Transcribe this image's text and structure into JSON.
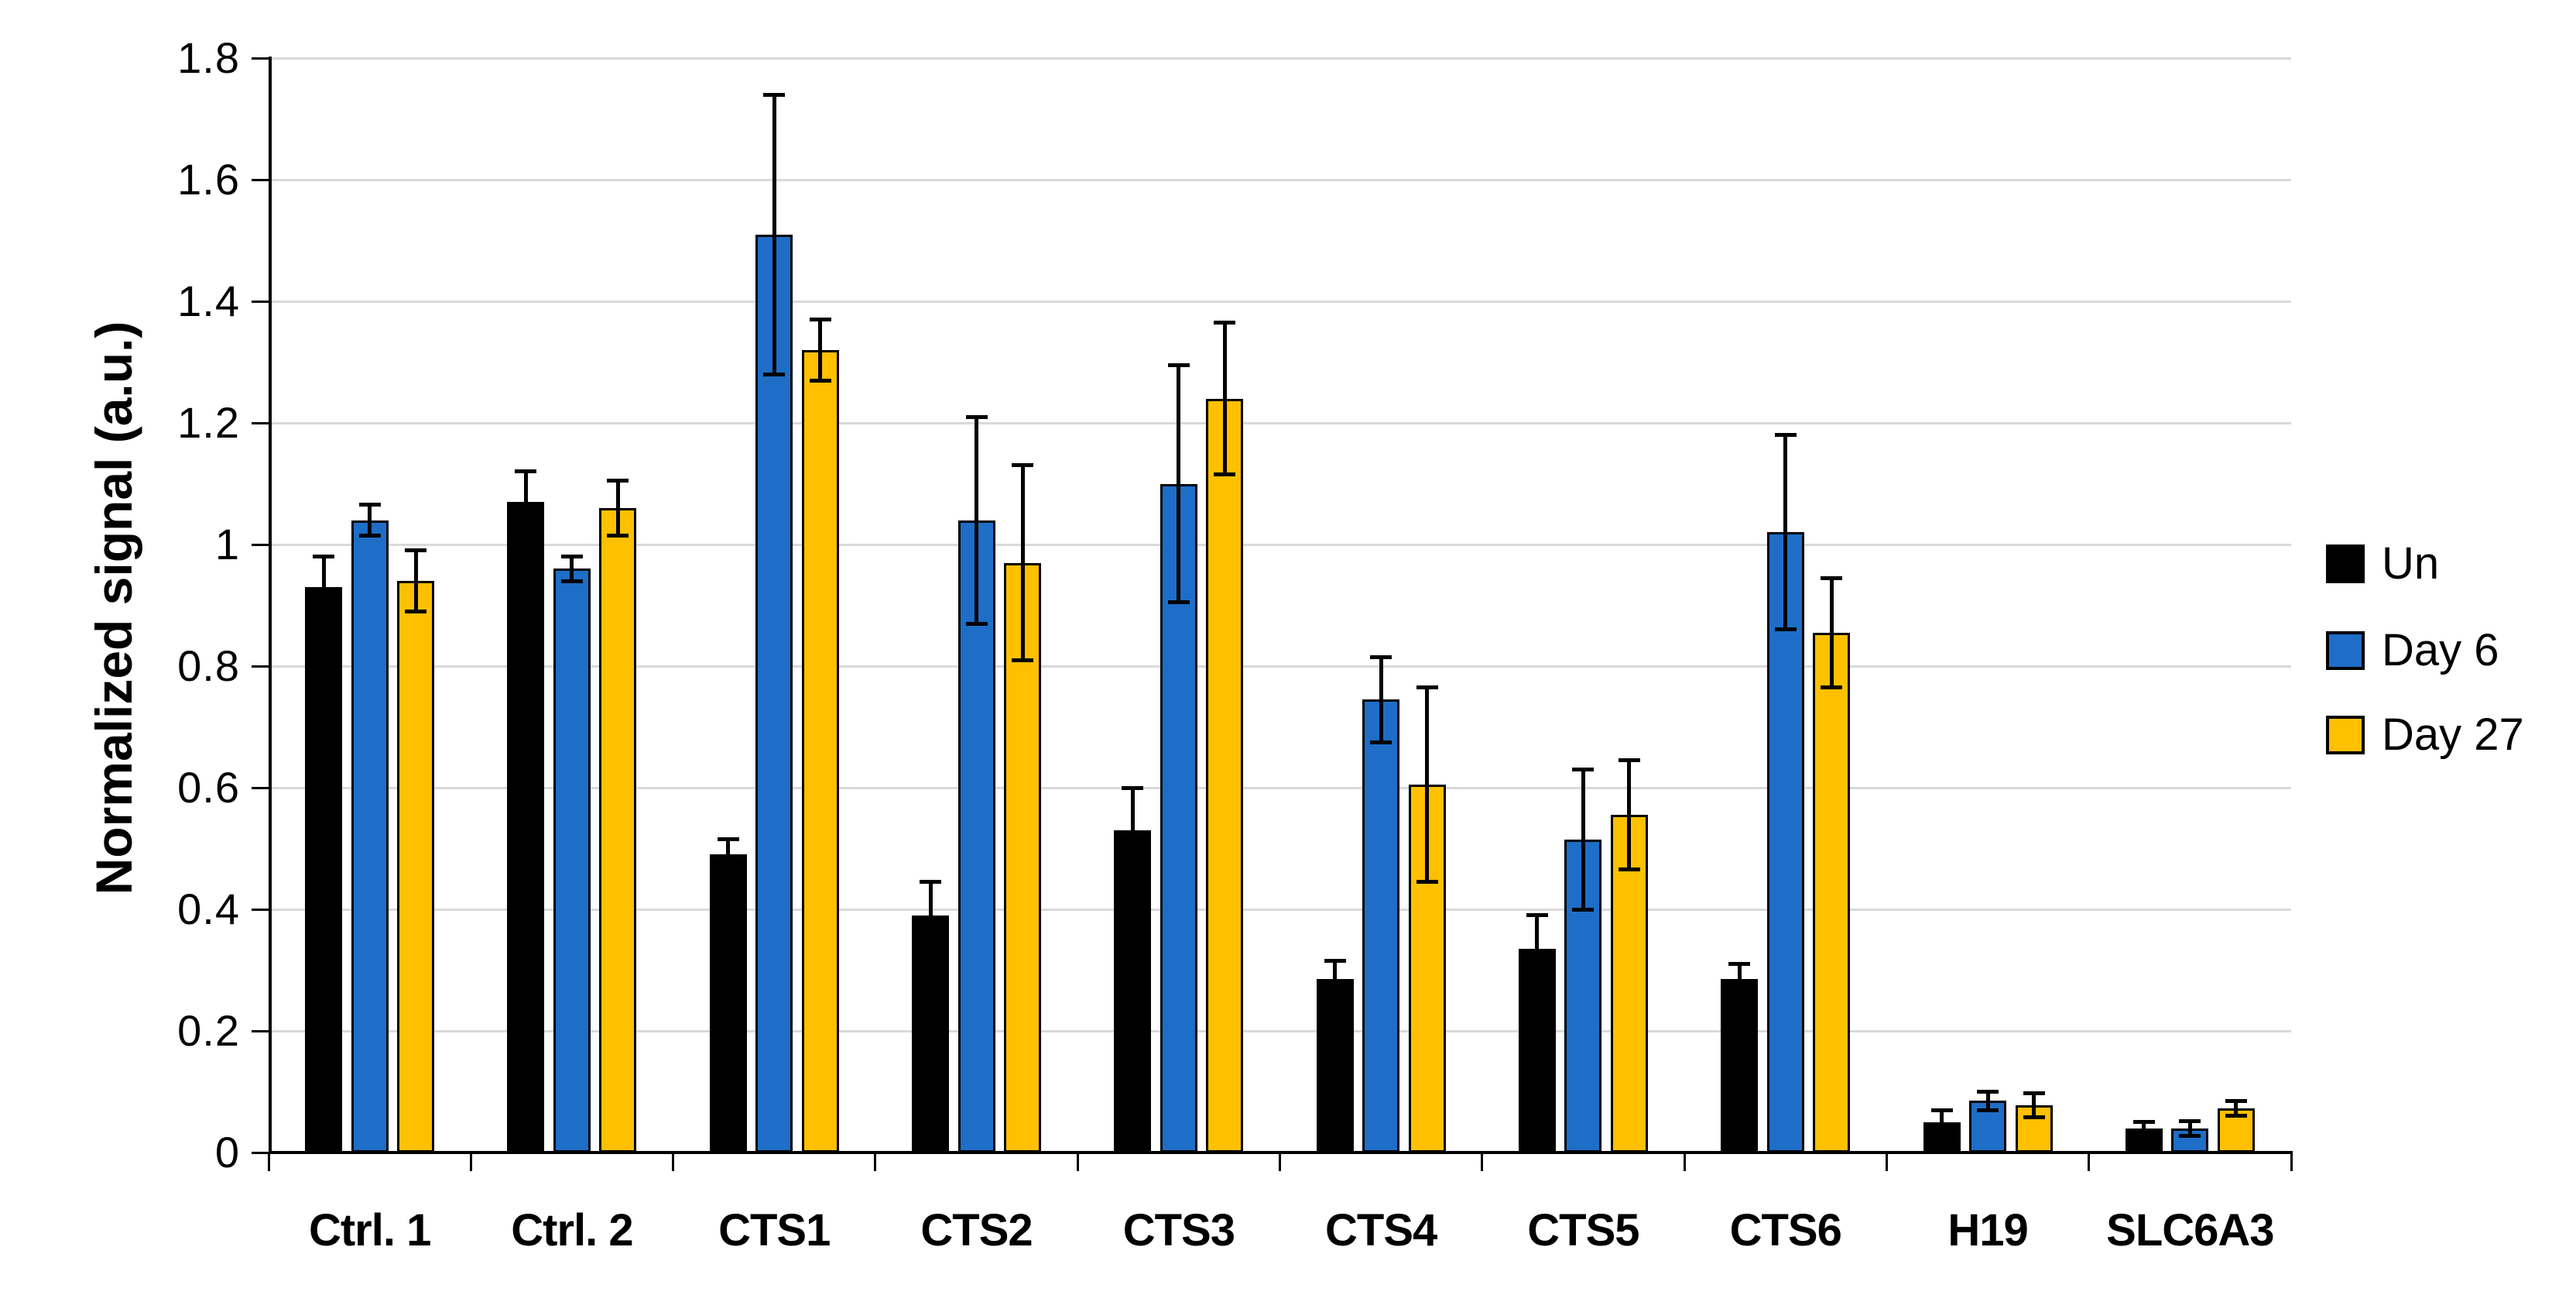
{
  "chart_data": {
    "type": "bar",
    "title": "",
    "xlabel": "",
    "ylabel": "Normalized signal (a.u.)",
    "ylim": [
      0,
      1.8
    ],
    "ytick_step": 0.2,
    "ytick_labels": [
      "0",
      "0.2",
      "0.4",
      "0.6",
      "0.8",
      "1",
      "1.2",
      "1.4",
      "1.6",
      "1.8"
    ],
    "grid": "horizontal",
    "legend_position": "right",
    "categories": [
      "Ctrl. 1",
      "Ctrl. 2",
      "CTS1",
      "CTS2",
      "CTS3",
      "CTS4",
      "CTS5",
      "CTS6",
      "H19",
      "SLC6A3"
    ],
    "series": [
      {
        "name": "Un",
        "color": "#000000",
        "border_color": "#000000",
        "values": [
          0.93,
          1.07,
          0.49,
          0.39,
          0.53,
          0.285,
          0.335,
          0.285,
          0.05,
          0.04
        ],
        "errors": [
          0.05,
          0.05,
          0.025,
          0.055,
          0.07,
          0.03,
          0.055,
          0.025,
          0.02,
          0.01
        ]
      },
      {
        "name": "Day 6",
        "color": "#1e6ec8",
        "border_color": "#000000",
        "values": [
          1.04,
          0.96,
          1.51,
          1.04,
          1.1,
          0.745,
          0.515,
          1.02,
          0.085,
          0.04
        ],
        "errors": [
          0.025,
          0.02,
          0.23,
          0.17,
          0.195,
          0.07,
          0.115,
          0.16,
          0.015,
          0.012
        ]
      },
      {
        "name": "Day 27",
        "color": "#ffc000",
        "border_color": "#000000",
        "values": [
          0.94,
          1.06,
          1.32,
          0.97,
          1.24,
          0.605,
          0.555,
          0.855,
          0.078,
          0.073
        ],
        "errors": [
          0.05,
          0.045,
          0.05,
          0.16,
          0.125,
          0.16,
          0.09,
          0.09,
          0.02,
          0.012
        ]
      }
    ],
    "colors": {
      "background": "#ffffff",
      "gridline": "#d9d9d9",
      "axis": "#000000",
      "series_un": "#000000",
      "series_day6": "#1e6ec8",
      "series_day27": "#ffc000"
    }
  }
}
